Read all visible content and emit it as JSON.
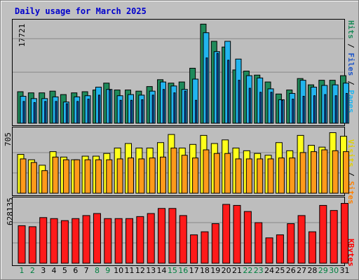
{
  "title": "Daily usage for March 2025",
  "colors": {
    "hits": "#1f8a5a",
    "files": "#1e55c8",
    "pages": "#22b4ee",
    "visits": "#ffff1a",
    "sites": "#ff9a1a",
    "kbytes": "#ff1a1a",
    "weekend_day": "#008040",
    "weekday_day": "#000000"
  },
  "legend_hits": {
    "pages": "Pages",
    "slash1": " / ",
    "files": "Files",
    "slash2": " / ",
    "hits": "Hits"
  },
  "legend_visits": {
    "sites": "Sites",
    "slash": " / ",
    "visits": "Visits"
  },
  "legend_kbytes": {
    "kbytes": "KBytes"
  },
  "axis_labels": {
    "hits_max": "17721",
    "visits_max": "705",
    "kbytes_max": "628135"
  },
  "chart_data": [
    {
      "type": "bar",
      "categories": [
        "1",
        "2",
        "3",
        "4",
        "5",
        "6",
        "7",
        "8",
        "9",
        "10",
        "11",
        "12",
        "13",
        "14",
        "15",
        "16",
        "17",
        "18",
        "19",
        "20",
        "21",
        "22",
        "23",
        "24",
        "25",
        "26",
        "27",
        "28",
        "29",
        "30",
        "31"
      ],
      "weekend": [
        1,
        2,
        8,
        9,
        15,
        16,
        22,
        23,
        29,
        30
      ],
      "ylim": [
        0,
        17721
      ],
      "series": [
        {
          "name": "Hits",
          "values": [
            5500,
            5300,
            5300,
            5600,
            5000,
            5300,
            5500,
            5800,
            7000,
            5800,
            5800,
            5600,
            6400,
            7600,
            7000,
            7200,
            9600,
            17300,
            14300,
            13300,
            9300,
            9100,
            8400,
            7200,
            5100,
            5800,
            7800,
            6700,
            7500,
            7500,
            8300
          ]
        },
        {
          "name": "Files",
          "values": [
            3800,
            3600,
            3800,
            3800,
            3400,
            3800,
            4200,
            4900,
            5800,
            4000,
            4000,
            4100,
            4900,
            5900,
            5300,
            5600,
            4000,
            11400,
            12200,
            11000,
            7500,
            6100,
            5400,
            5400,
            4000,
            4200,
            4700,
            4800,
            5000,
            4800,
            5200
          ]
        },
        {
          "name": "Pages",
          "values": [
            4700,
            4300,
            4300,
            4600,
            3700,
            4600,
            4800,
            6300,
            5900,
            4800,
            5000,
            4900,
            5600,
            7200,
            6500,
            5900,
            7700,
            15800,
            12500,
            14300,
            11200,
            8300,
            7900,
            6000,
            4100,
            5200,
            7500,
            6300,
            6600,
            6700,
            7000
          ]
        }
      ]
    },
    {
      "type": "bar",
      "categories": [
        "1",
        "2",
        "3",
        "4",
        "5",
        "6",
        "7",
        "8",
        "9",
        "10",
        "11",
        "12",
        "13",
        "14",
        "15",
        "16",
        "17",
        "18",
        "19",
        "20",
        "21",
        "22",
        "23",
        "24",
        "25",
        "26",
        "27",
        "28",
        "29",
        "30",
        "31"
      ],
      "ylim": [
        0,
        705
      ],
      "series": [
        {
          "name": "Visits",
          "values": [
            430,
            370,
            310,
            460,
            400,
            370,
            410,
            410,
            440,
            500,
            550,
            500,
            500,
            560,
            650,
            500,
            540,
            640,
            550,
            590,
            500,
            470,
            440,
            420,
            560,
            470,
            640,
            530,
            510,
            670,
            630
          ]
        },
        {
          "name": "Sites",
          "values": [
            380,
            340,
            250,
            400,
            370,
            370,
            370,
            370,
            370,
            380,
            390,
            380,
            390,
            400,
            500,
            420,
            390,
            480,
            440,
            440,
            380,
            380,
            380,
            380,
            390,
            390,
            450,
            460,
            480,
            470,
            460
          ]
        }
      ]
    },
    {
      "type": "bar",
      "categories": [
        "1",
        "2",
        "3",
        "4",
        "5",
        "6",
        "7",
        "8",
        "9",
        "10",
        "11",
        "12",
        "13",
        "14",
        "15",
        "16",
        "17",
        "18",
        "19",
        "20",
        "21",
        "22",
        "23",
        "24",
        "25",
        "26",
        "27",
        "28",
        "29",
        "30",
        "31"
      ],
      "ylim": [
        0,
        628135
      ],
      "series": [
        {
          "name": "KBytes",
          "values": [
            370000,
            360000,
            450000,
            440000,
            420000,
            440000,
            470000,
            490000,
            440000,
            440000,
            440000,
            460000,
            490000,
            540000,
            540000,
            470000,
            280000,
            310000,
            390000,
            580000,
            570000,
            510000,
            400000,
            250000,
            280000,
            390000,
            470000,
            310000,
            570000,
            520000,
            590000
          ]
        }
      ]
    }
  ]
}
